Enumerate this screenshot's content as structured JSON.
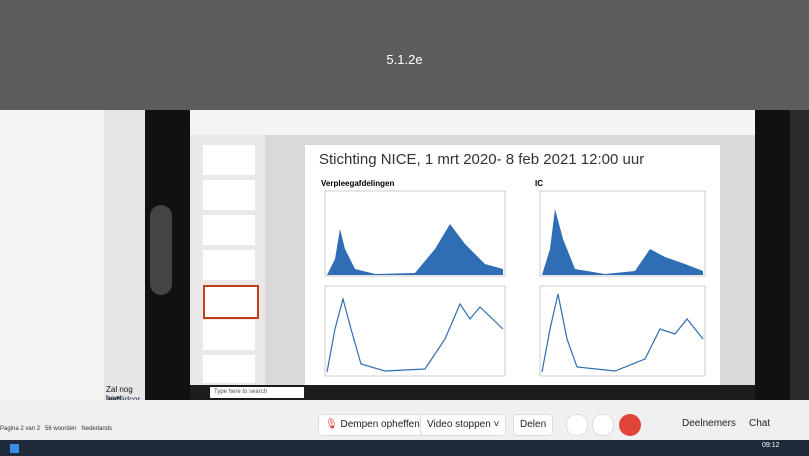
{
  "header": {
    "title": "5.1.2e"
  },
  "word": {
    "lines": [
      "Zal nog beet",
      "leeftijdcor"
    ],
    "status": [
      "Pagina 2 van 2",
      "56 woorden",
      "Nederlands"
    ]
  },
  "slide": {
    "title": "Stichting NICE, 1 mrt 2020- 8 feb 2021 12:00 uur",
    "panels": [
      "Verpleegafdelingen",
      "IC"
    ]
  },
  "taskbar_inner": {
    "search": "Type here to search"
  },
  "toolbar": {
    "mute": "Dempen opheffen",
    "video": "Video stoppen",
    "share": "Delen",
    "participants": "Deelnemers",
    "chat": "Chat"
  },
  "taskbar": {
    "time": "09:12"
  }
}
